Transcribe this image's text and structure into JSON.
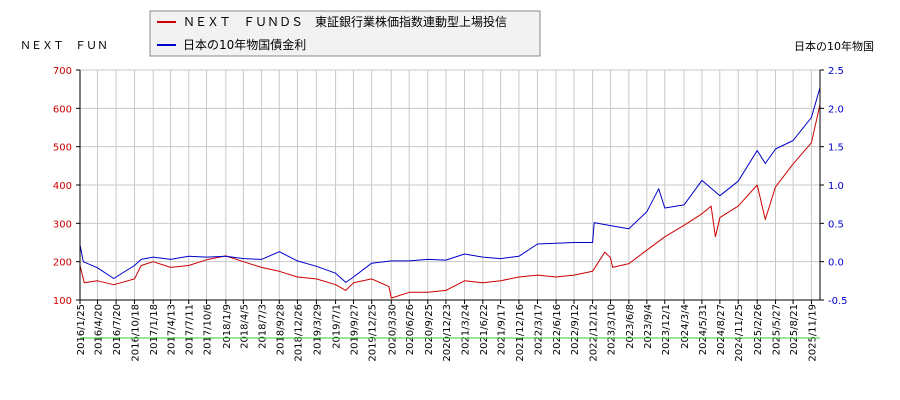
{
  "chart_data": {
    "type": "line",
    "left_axis_title": "ＮＥＸＴ　ＦＵＮ",
    "right_axis_title": "日本の10年物国",
    "legend_position": "top-left",
    "grid": true,
    "colors": {
      "series_1": "#cc0000",
      "series_2": "#0000cc",
      "baseline": "#33cc33"
    },
    "y_left": {
      "min": 100,
      "max": 700,
      "ticks": [
        "100",
        "200",
        "300",
        "400",
        "500",
        "600",
        "700"
      ]
    },
    "y_right": {
      "min": -0.5,
      "max": 2.5,
      "ticks": [
        "-0.5",
        "0.0",
        "0.5",
        "1.0",
        "1.5",
        "2.0",
        "2.5"
      ]
    },
    "x_range": [
      "2016/1/25",
      "2025/12/31"
    ],
    "x_ticks": [
      "2016/1/25",
      "2016/4/20",
      "2016/7/20",
      "2016/10/18",
      "2017/1/18",
      "2017/4/13",
      "2017/7/11",
      "2017/10/6",
      "2018/1/9",
      "2018/4/5",
      "2018/7/3",
      "2018/9/28",
      "2018/12/26",
      "2019/3/29",
      "2019/7/1",
      "2019/9/27",
      "2019/12/25",
      "2020/3/30",
      "2020/6/26",
      "2020/9/25",
      "2020/12/23",
      "2021/3/24",
      "2021/6/22",
      "2021/9/17",
      "2021/12/16",
      "2022/3/17",
      "2022/6/16",
      "2022/9/12",
      "2022/12/12",
      "2023/3/10",
      "2023/6/8",
      "2023/9/4",
      "2023/12/1",
      "2024/3/4",
      "2024/5/31",
      "2024/8/27",
      "2024/11/25",
      "2025/2/26",
      "2025/5/27",
      "2025/8/21",
      "2025/11/19"
    ],
    "series": [
      {
        "name": "ＮＥＸＴ　ＦＵＮＤＳ　東証銀行業株価指数連動型上場投信",
        "axis": "left",
        "x": [
          "2016/1/25",
          "2016/2/15",
          "2016/4/20",
          "2016/7/8",
          "2016/10/18",
          "2016/11/20",
          "2017/1/18",
          "2017/4/13",
          "2017/7/11",
          "2017/10/6",
          "2018/1/9",
          "2018/4/5",
          "2018/7/3",
          "2018/9/28",
          "2018/12/26",
          "2019/3/29",
          "2019/7/1",
          "2019/8/20",
          "2019/9/27",
          "2019/12/25",
          "2020/3/19",
          "2020/3/30",
          "2020/6/26",
          "2020/9/25",
          "2020/12/23",
          "2021/3/24",
          "2021/6/22",
          "2021/9/17",
          "2021/12/16",
          "2022/3/17",
          "2022/6/16",
          "2022/9/12",
          "2022/12/12",
          "2023/2/10",
          "2023/3/10",
          "2023/3/20",
          "2023/6/8",
          "2023/9/4",
          "2023/12/1",
          "2024/3/4",
          "2024/5/31",
          "2024/7/15",
          "2024/8/5",
          "2024/8/27",
          "2024/11/25",
          "2025/2/26",
          "2025/4/7",
          "2025/5/27",
          "2025/8/21",
          "2025/11/19",
          "2025/12/31"
        ],
        "values": [
          190,
          145,
          150,
          140,
          155,
          190,
          200,
          185,
          190,
          205,
          215,
          200,
          185,
          175,
          160,
          155,
          140,
          125,
          145,
          155,
          135,
          105,
          120,
          120,
          125,
          150,
          145,
          150,
          160,
          165,
          160,
          165,
          175,
          225,
          210,
          185,
          195,
          230,
          265,
          295,
          325,
          345,
          265,
          315,
          345,
          400,
          310,
          395,
          455,
          510,
          610
        ]
      },
      {
        "name": "日本の10年物国債金利",
        "axis": "right",
        "x": [
          "2016/1/25",
          "2016/2/10",
          "2016/4/20",
          "2016/7/8",
          "2016/10/18",
          "2016/11/20",
          "2017/1/18",
          "2017/4/13",
          "2017/7/11",
          "2017/10/6",
          "2018/1/9",
          "2018/4/5",
          "2018/7/3",
          "2018/9/28",
          "2018/12/26",
          "2019/3/29",
          "2019/7/1",
          "2019/8/20",
          "2019/9/27",
          "2019/12/25",
          "2020/3/30",
          "2020/6/26",
          "2020/9/25",
          "2020/12/23",
          "2021/3/24",
          "2021/6/22",
          "2021/9/17",
          "2021/12/16",
          "2022/3/17",
          "2022/6/16",
          "2022/9/12",
          "2022/12/12",
          "2022/12/20",
          "2023/3/10",
          "2023/6/8",
          "2023/9/4",
          "2023/11/1",
          "2023/12/1",
          "2024/3/4",
          "2024/5/31",
          "2024/8/5",
          "2024/8/27",
          "2024/11/25",
          "2025/2/26",
          "2025/4/7",
          "2025/5/27",
          "2025/8/21",
          "2025/11/19",
          "2025/12/31"
        ],
        "values": [
          0.22,
          0.0,
          -0.08,
          -0.22,
          -0.05,
          0.03,
          0.06,
          0.03,
          0.07,
          0.06,
          0.07,
          0.04,
          0.03,
          0.13,
          0.01,
          -0.06,
          -0.15,
          -0.27,
          -0.2,
          -0.02,
          0.01,
          0.01,
          0.03,
          0.02,
          0.1,
          0.06,
          0.04,
          0.07,
          0.23,
          0.24,
          0.25,
          0.25,
          0.51,
          0.47,
          0.43,
          0.65,
          0.95,
          0.7,
          0.74,
          1.06,
          0.91,
          0.86,
          1.05,
          1.45,
          1.28,
          1.47,
          1.58,
          1.88,
          2.27
        ]
      }
    ]
  }
}
